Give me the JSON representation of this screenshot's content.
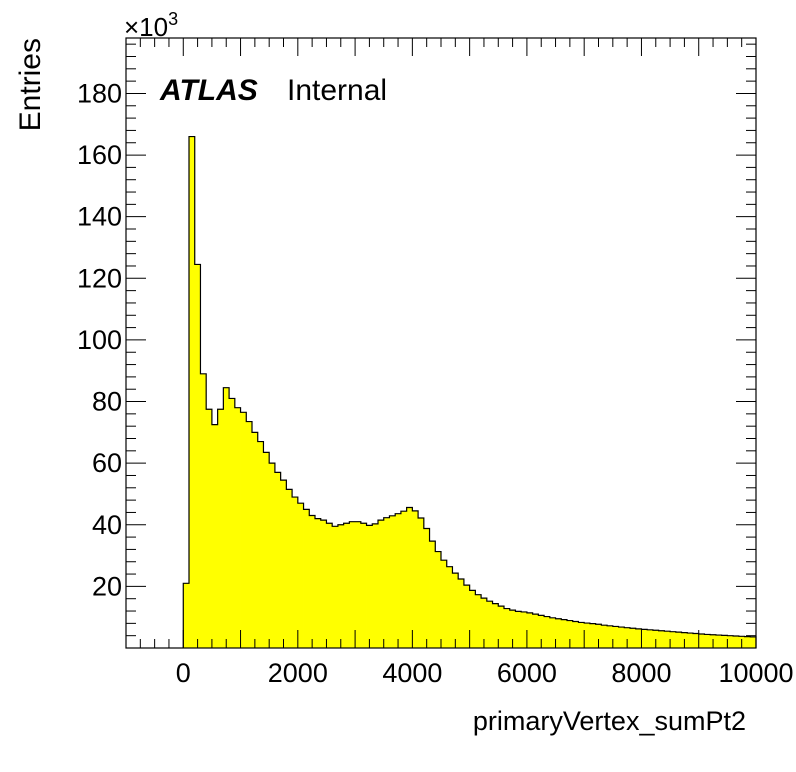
{
  "colors": {
    "fill": "#ffff00",
    "line": "#000000",
    "background": "#ffffff"
  },
  "chart_data": {
    "type": "bar",
    "style": "histogram",
    "title": "",
    "xlabel": "primaryVertex_sumPt2",
    "ylabel": "Entries",
    "y_multiplier_label": "×10",
    "y_multiplier_exponent": "3",
    "atlas_label": "ATLAS",
    "status_label": "Internal",
    "xlim": [
      -1000,
      10000
    ],
    "ylim": [
      0,
      198000
    ],
    "x_ticks": [
      "0",
      "2000",
      "4000",
      "6000",
      "8000",
      "10000"
    ],
    "y_ticks": [
      "20",
      "40",
      "60",
      "80",
      "100",
      "120",
      "140",
      "160",
      "180"
    ],
    "bin_width": 100,
    "bin_start": 0,
    "values": [
      21000,
      166000,
      124500,
      89000,
      77500,
      72500,
      77500,
      84500,
      81000,
      78000,
      76500,
      73500,
      70000,
      67000,
      63500,
      60000,
      57000,
      54500,
      51500,
      49000,
      47000,
      45000,
      43000,
      42000,
      41500,
      40500,
      39500,
      40000,
      40500,
      41000,
      41000,
      40500,
      39800,
      40300,
      41500,
      42300,
      42900,
      43600,
      44400,
      45600,
      44500,
      42200,
      38800,
      34700,
      31300,
      28500,
      26400,
      24300,
      22400,
      20400,
      18700,
      17300,
      16200,
      15200,
      14400,
      13600,
      12800,
      12300,
      11900,
      11700,
      11400,
      11000,
      10600,
      10200,
      9800,
      9500,
      9200,
      8900,
      8600,
      8300,
      8100,
      7900,
      7700,
      7400,
      7200,
      7000,
      6800,
      6600,
      6400,
      6200,
      6050,
      5900,
      5750,
      5600,
      5450,
      5300,
      5150,
      5000,
      4850,
      4700,
      4550,
      4400,
      4300,
      4200,
      4100,
      4000,
      3900,
      3800,
      3700,
      3600
    ]
  }
}
